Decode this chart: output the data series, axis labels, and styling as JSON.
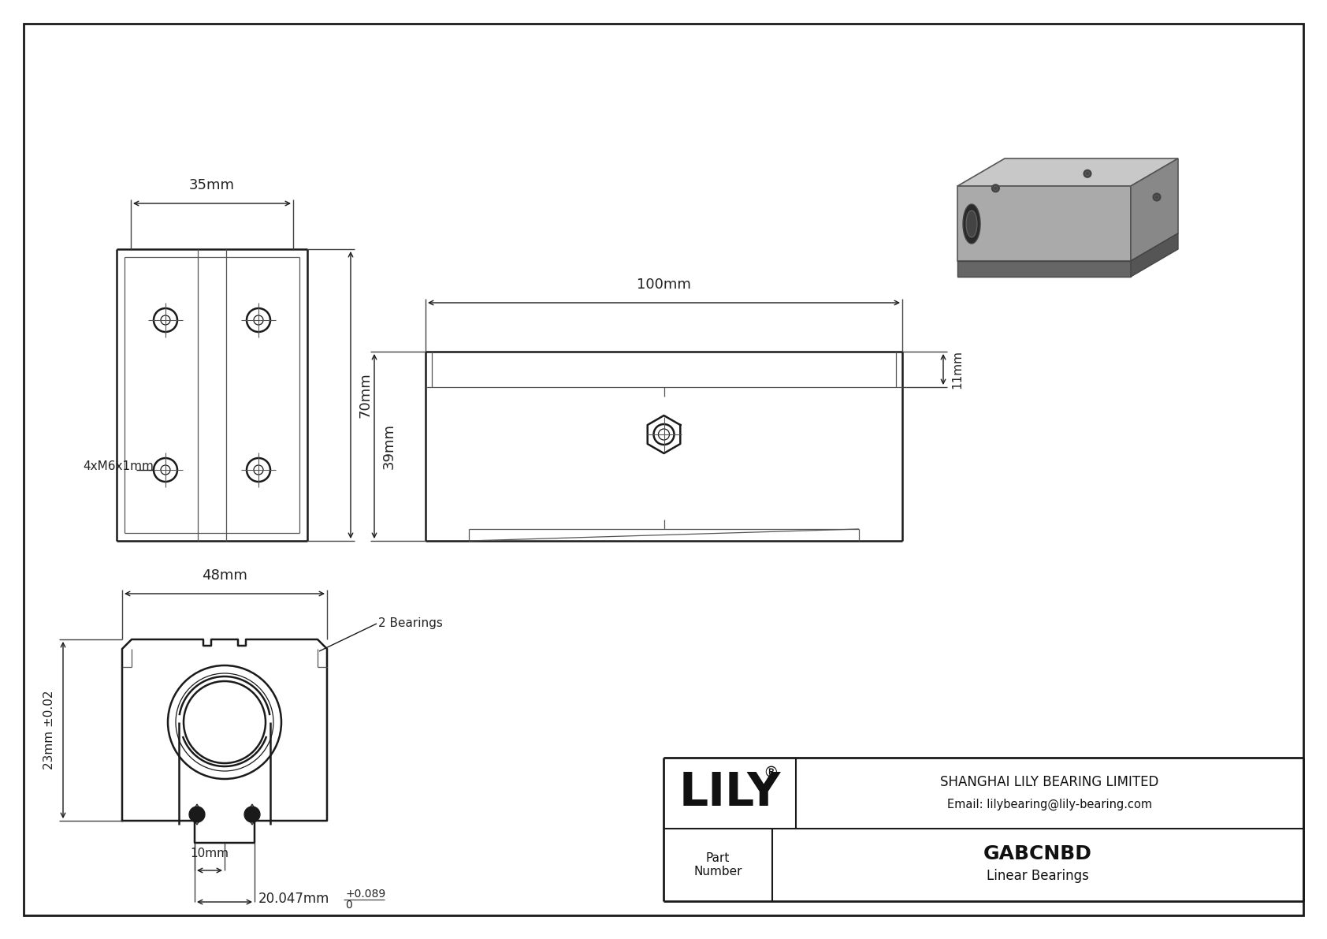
{
  "bg_color": "#ffffff",
  "line_color": "#1a1a1a",
  "dim_color": "#222222",
  "title": "GABCNBD",
  "subtitle": "Linear Bearings",
  "company": "SHANGHAI LILY BEARING LIMITED",
  "email": "Email: lilybearing@lily-bearing.com",
  "part_label": "Part\nNumber",
  "logo": "LILY",
  "logo_reg": "®",
  "dim_35mm": "35mm",
  "dim_70mm": "70mm",
  "dim_48mm": "48mm",
  "dim_100mm": "100mm",
  "dim_39mm": "39mm",
  "dim_11mm": "11mm",
  "dim_23mm": "23mm ±0.02",
  "dim_10mm": "10mm",
  "dim_20mm": "20.047mm",
  "label_4xM6": "4xM6x1mm",
  "label_2brg": "2 Bearings"
}
